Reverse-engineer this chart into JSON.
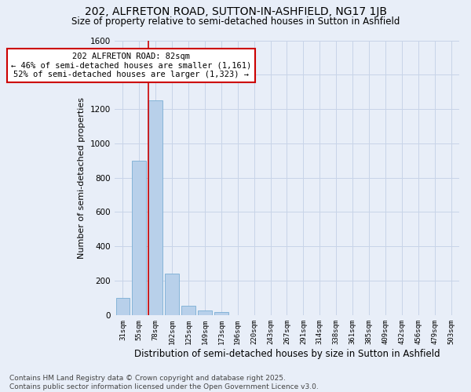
{
  "title": "202, ALFRETON ROAD, SUTTON-IN-ASHFIELD, NG17 1JB",
  "subtitle": "Size of property relative to semi-detached houses in Sutton in Ashfield",
  "xlabel": "Distribution of semi-detached houses by size in Sutton in Ashfield",
  "ylabel": "Number of semi-detached properties",
  "categories": [
    "31sqm",
    "55sqm",
    "78sqm",
    "102sqm",
    "125sqm",
    "149sqm",
    "173sqm",
    "196sqm",
    "220sqm",
    "243sqm",
    "267sqm",
    "291sqm",
    "314sqm",
    "338sqm",
    "361sqm",
    "385sqm",
    "409sqm",
    "432sqm",
    "456sqm",
    "479sqm",
    "503sqm"
  ],
  "values": [
    100,
    900,
    1250,
    240,
    55,
    25,
    18,
    0,
    0,
    0,
    0,
    0,
    0,
    0,
    0,
    0,
    0,
    0,
    0,
    0,
    0
  ],
  "bar_color": "#b8d0ea",
  "bar_edge_color": "#7aadd4",
  "annotation_text": "202 ALFRETON ROAD: 82sqm\n← 46% of semi-detached houses are smaller (1,161)\n52% of semi-detached houses are larger (1,323) →",
  "annotation_box_color": "#ffffff",
  "annotation_box_edge": "#cc0000",
  "vline_color": "#cc0000",
  "ylim": [
    0,
    1600
  ],
  "yticks": [
    0,
    200,
    400,
    600,
    800,
    1000,
    1200,
    1400,
    1600
  ],
  "grid_color": "#c8d4e8",
  "bg_color": "#e8eef8",
  "footer": "Contains HM Land Registry data © Crown copyright and database right 2025.\nContains public sector information licensed under the Open Government Licence v3.0.",
  "title_fontsize": 10,
  "subtitle_fontsize": 8.5,
  "xlabel_fontsize": 8.5,
  "ylabel_fontsize": 8,
  "footer_fontsize": 6.5
}
